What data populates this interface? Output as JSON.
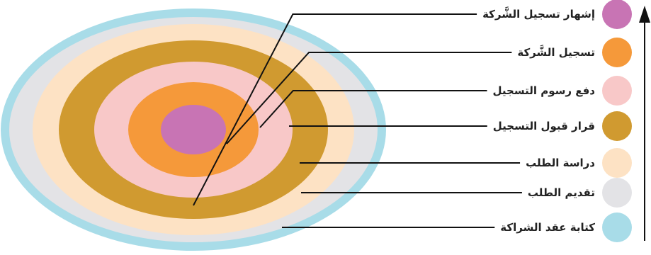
{
  "stages": [
    {
      "label": "إشهار تسجيل الشَّركة",
      "color": "#c874b4"
    },
    {
      "label": "تسجيل الشَّركة",
      "color": "#f5993a"
    },
    {
      "label": "دفع رسوم التسجيل",
      "color": "#f8c8c8"
    },
    {
      "label": "قرار قبول التسجيل",
      "color": "#d09a30"
    },
    {
      "label": "دراسة الطلب",
      "color": "#fde2c4"
    },
    {
      "label": "تقديم الطلب",
      "color": "#e3e3e6"
    },
    {
      "label": "كتابة عقد الشراكة",
      "color": "#a8dce8"
    }
  ],
  "axis_color": "#111111"
}
